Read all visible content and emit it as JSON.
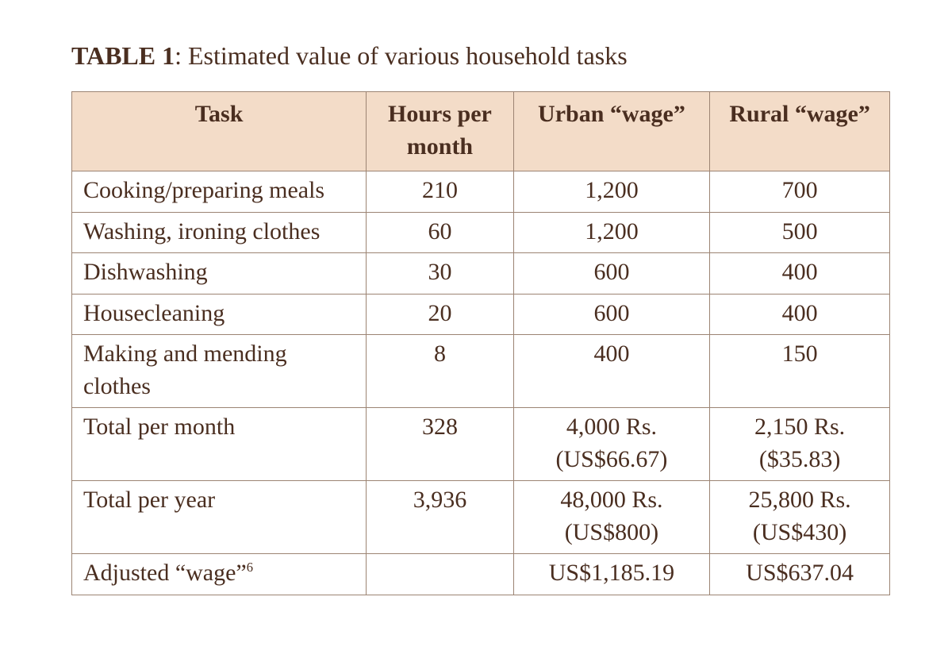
{
  "colors": {
    "page_background": "#ffffff",
    "text": "#4a2e20",
    "header_fill": "#f3dcc8",
    "border": "#9c8473"
  },
  "typography": {
    "font_family": "Times New Roman, serif",
    "caption_fontsize_pt": 24,
    "cell_fontsize_pt": 22,
    "header_weight": "bold"
  },
  "table": {
    "label": "TABLE 1",
    "title": ": Estimated value of various household tasks",
    "column_widths_pct": [
      36,
      18,
      24,
      22
    ],
    "columns": {
      "task": "Task",
      "hours": "Hours per month",
      "urban": "Urban “wage”",
      "rural": "Rural “wage”"
    },
    "rows": [
      {
        "task": "Cooking/preparing meals",
        "hours": "210",
        "urban": "1,200",
        "rural": "700"
      },
      {
        "task": "Washing, ironing clothes",
        "hours": "60",
        "urban": "1,200",
        "rural": "500"
      },
      {
        "task": "Dishwashing",
        "hours": "30",
        "urban": "600",
        "rural": "400"
      },
      {
        "task": "Housecleaning",
        "hours": "20",
        "urban": "600",
        "rural": "400"
      },
      {
        "task": "Making and mending clothes",
        "hours": "8",
        "urban": "400",
        "rural": "150"
      }
    ],
    "totals": {
      "month": {
        "task": "Total per month",
        "hours": "328",
        "urban_line1": "4,000 Rs.",
        "urban_line2": "(US$66.67)",
        "rural_line1": "2,150 Rs.",
        "rural_line2": "($35.83)"
      },
      "year": {
        "task": "Total per year",
        "hours": "3,936",
        "urban_line1": "48,000 Rs.",
        "urban_line2": "(US$800)",
        "rural_line1": "25,800 Rs.",
        "rural_line2": "(US$430)"
      },
      "adjusted": {
        "task": "Adjusted “wage”",
        "footnote_marker": "6",
        "hours": "",
        "urban": "US$1,185.19",
        "rural": "US$637.04"
      }
    }
  }
}
